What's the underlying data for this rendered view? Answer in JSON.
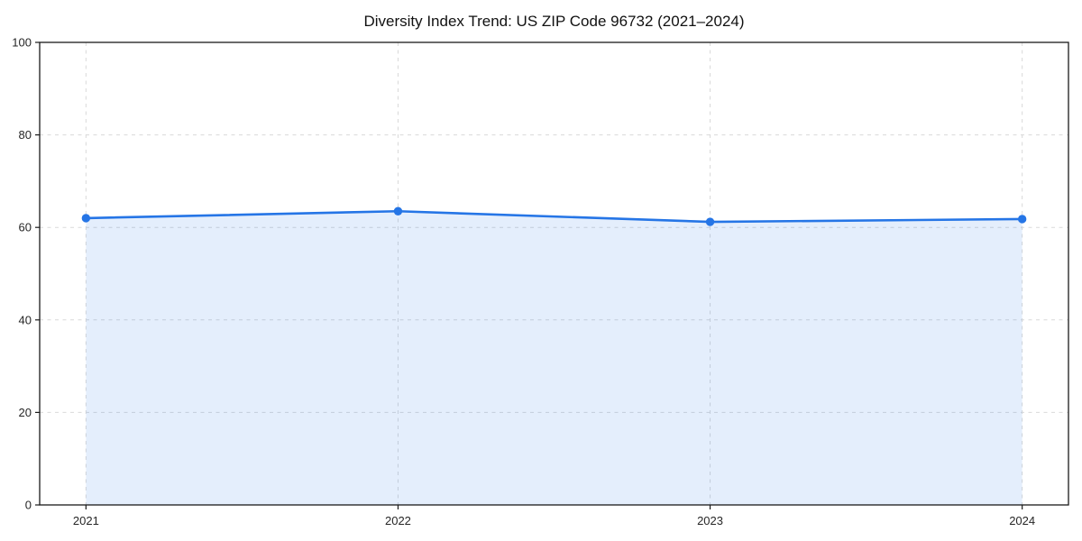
{
  "page": {
    "title": "Diversity Index Trend: US ZIP Code 96732 (2021–2024)"
  },
  "chart_data": {
    "type": "line",
    "title": "Diversity Index Trend: US ZIP Code 96732 (2021–2024)",
    "categories": [
      "2021",
      "2022",
      "2023",
      "2024"
    ],
    "series": [
      {
        "name": "Diversity Index",
        "values": [
          62.0,
          63.5,
          61.2,
          61.8
        ]
      }
    ],
    "xlabel": "",
    "ylabel": "",
    "ylim": [
      0,
      100
    ],
    "yticks": [
      0,
      20,
      40,
      60,
      80,
      100
    ],
    "grid": true,
    "grid_style": "dashed",
    "legend_position": "none",
    "area_fill": true,
    "colors": {
      "line": "#2575e6",
      "marker": "#2575e6",
      "area": "rgba(37, 117, 230, 0.12)",
      "grid": "#d9d9d9",
      "spine": "#1a1a1a",
      "title_text": "#111111",
      "tick_text": "#262626",
      "background": "#ffffff"
    }
  }
}
